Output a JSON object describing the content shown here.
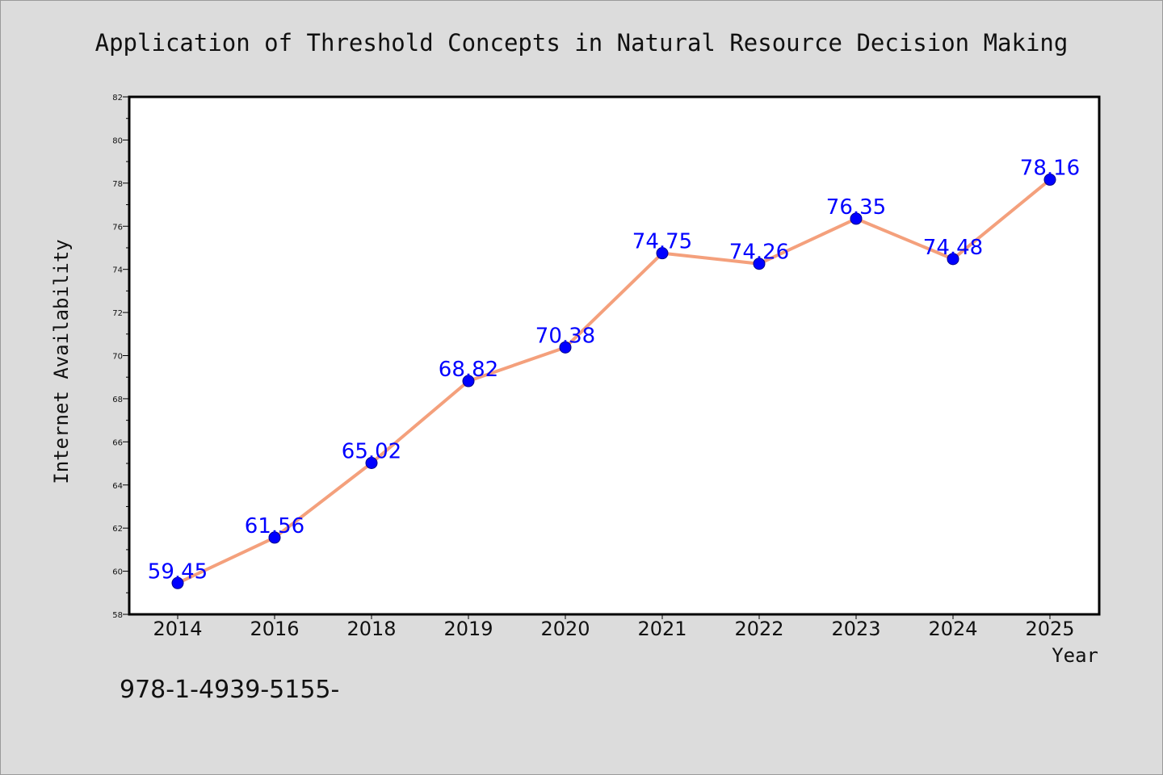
{
  "chart_data": {
    "type": "line",
    "title": "Application of Threshold Concepts in Natural Resource Decision Making",
    "xlabel": "Year",
    "ylabel": "Internet Availability",
    "categories": [
      "2014",
      "2016",
      "2018",
      "2019",
      "2020",
      "2021",
      "2022",
      "2023",
      "2024",
      "2025"
    ],
    "series": [
      {
        "values": [
          59.45,
          61.56,
          65.02,
          68.82,
          70.38,
          74.75,
          74.26,
          76.35,
          74.48,
          78.16
        ],
        "labels": [
          "59.45",
          "61.56",
          "65.02",
          "68.82",
          "70.38",
          "74.75",
          "74.26",
          "76.35",
          "74.48",
          "78.16"
        ]
      }
    ],
    "ylim": [
      58,
      82
    ],
    "yticks": [
      "58",
      "60",
      "62",
      "64",
      "66",
      "68",
      "70",
      "72",
      "74",
      "76",
      "78",
      "80",
      "82"
    ],
    "grid": false,
    "legend": "none",
    "colors": {
      "line": "#f4a07c",
      "marker": "#0000ff",
      "marker_edge": "#00008b",
      "data_label": "#0000ff",
      "plot_background": "#ffffff",
      "page_background": "#dcdcdc"
    }
  },
  "footnote": "978-1-4939-5155-"
}
